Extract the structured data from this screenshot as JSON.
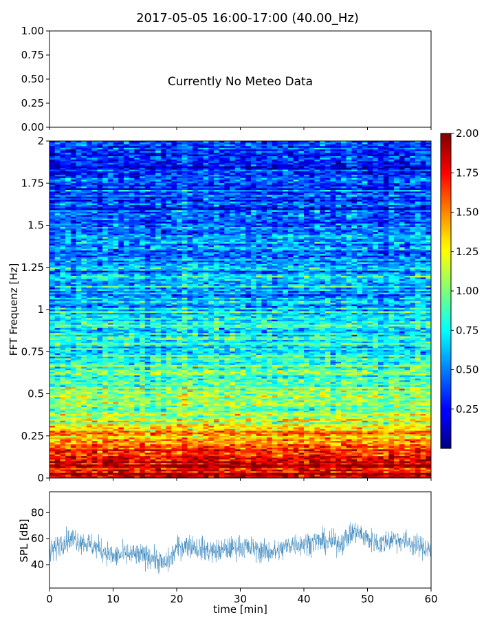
{
  "title": "2017-05-05 16:00-17:00 (40.00_Hz)",
  "chart_data": [
    {
      "type": "line",
      "panel": "meteo",
      "message": "Currently No Meteo Data",
      "ylim": [
        0,
        1
      ],
      "yticks": [
        "0.00",
        "0.25",
        "0.50",
        "0.75",
        "1.00"
      ],
      "xlim": [
        0,
        60
      ],
      "series": []
    },
    {
      "type": "heatmap",
      "panel": "spectrogram",
      "ylabel": "FFT Frequenz [Hz]",
      "xlim": [
        0,
        60
      ],
      "ylim": [
        0,
        2
      ],
      "yticks": [
        "0",
        "0.25",
        "0.5",
        "0.75",
        "1",
        "1.25",
        "1.5",
        "1.75",
        "2"
      ],
      "colormap": "jet",
      "colorbar": {
        "range": [
          0,
          2
        ],
        "ticks": [
          "0.25",
          "0.50",
          "0.75",
          "1.00",
          "1.25",
          "1.50",
          "1.75",
          "2.00"
        ]
      },
      "mean_level_by_frequency": [
        {
          "f": 0.0,
          "level": 1.95
        },
        {
          "f": 0.1,
          "level": 1.85
        },
        {
          "f": 0.2,
          "level": 1.6
        },
        {
          "f": 0.3,
          "level": 1.25
        },
        {
          "f": 0.4,
          "level": 1.0
        },
        {
          "f": 0.5,
          "level": 0.95
        },
        {
          "f": 0.6,
          "level": 0.9
        },
        {
          "f": 0.75,
          "level": 0.8
        },
        {
          "f": 1.0,
          "level": 0.7
        },
        {
          "f": 1.25,
          "level": 0.55
        },
        {
          "f": 1.5,
          "level": 0.45
        },
        {
          "f": 1.75,
          "level": 0.35
        },
        {
          "f": 2.0,
          "level": 0.3
        }
      ]
    },
    {
      "type": "line",
      "panel": "spl",
      "ylabel": "SPL [dB]",
      "xlabel": "time [min]",
      "xlim": [
        0,
        60
      ],
      "ylim": [
        22,
        96
      ],
      "xticks": [
        "0",
        "10",
        "20",
        "30",
        "40",
        "50",
        "60"
      ],
      "yticks": [
        "40",
        "60",
        "80"
      ],
      "color": "#1f77b4",
      "series": [
        {
          "x": [
            0,
            2,
            4,
            6,
            8,
            10,
            12,
            14,
            16,
            18,
            19,
            20,
            22,
            24,
            26,
            28,
            30,
            32,
            34,
            36,
            38,
            40,
            42,
            44,
            46,
            48,
            50,
            52,
            54,
            56,
            58,
            60
          ],
          "y": [
            48,
            58,
            60,
            56,
            52,
            46,
            48,
            47,
            46,
            40,
            44,
            53,
            55,
            52,
            50,
            52,
            54,
            52,
            50,
            50,
            56,
            56,
            58,
            57,
            57,
            66,
            60,
            56,
            60,
            58,
            54,
            52
          ]
        }
      ]
    }
  ]
}
